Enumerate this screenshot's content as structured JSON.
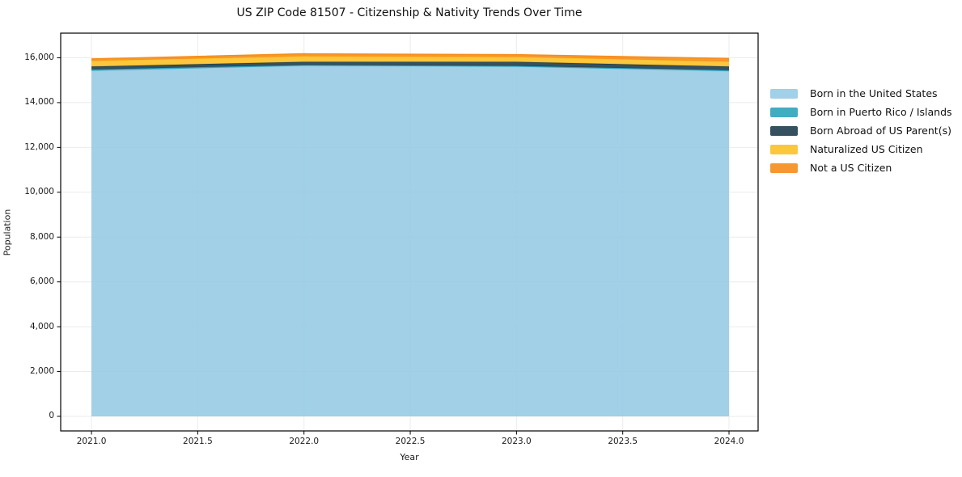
{
  "title": "US ZIP Code 81507 - Citizenship & Nativity Trends Over Time",
  "chart_data": {
    "type": "area",
    "stacked": true,
    "title": "US ZIP Code 81507 - Citizenship & Nativity Trends Over Time",
    "xlabel": "Year",
    "ylabel": "Population",
    "x": [
      2021,
      2022,
      2023,
      2024
    ],
    "series": [
      {
        "name": "Born in the United States",
        "color": "#97cbe4",
        "values": [
          15420,
          15640,
          15600,
          15400
        ]
      },
      {
        "name": "Born in Puerto Rico / Islands",
        "color": "#2fa3bd",
        "values": [
          60,
          40,
          40,
          50
        ]
      },
      {
        "name": "Born Abroad of US Parent(s)",
        "color": "#1f3d4d",
        "values": [
          130,
          140,
          180,
          160
        ]
      },
      {
        "name": "Naturalized US Citizen",
        "color": "#fcc128",
        "values": [
          250,
          250,
          220,
          220
        ]
      },
      {
        "name": "Not a US Citizen",
        "color": "#f68c1a",
        "values": [
          90,
          110,
          100,
          140
        ]
      }
    ],
    "xticks": {
      "values": [
        2021.0,
        2021.5,
        2022.0,
        2022.5,
        2023.0,
        2023.5,
        2024.0
      ],
      "labels": [
        "2021.0",
        "2021.5",
        "2022.0",
        "2022.5",
        "2023.0",
        "2023.5",
        "2024.0"
      ]
    },
    "yticks": {
      "values": [
        0,
        2000,
        4000,
        6000,
        8000,
        10000,
        12000,
        14000,
        16000
      ],
      "labels": [
        "0",
        "2,000",
        "4,000",
        "6,000",
        "8,000",
        "10,000",
        "12,000",
        "14,000",
        "16,000"
      ]
    },
    "xlim": [
      2020.855,
      2024.137
    ],
    "ylim": [
      -650,
      17100
    ],
    "grid": true,
    "grid_color": "#ebebeb",
    "frame_color": "#000000",
    "fill_opacity": 0.9,
    "legend_position": "right"
  }
}
